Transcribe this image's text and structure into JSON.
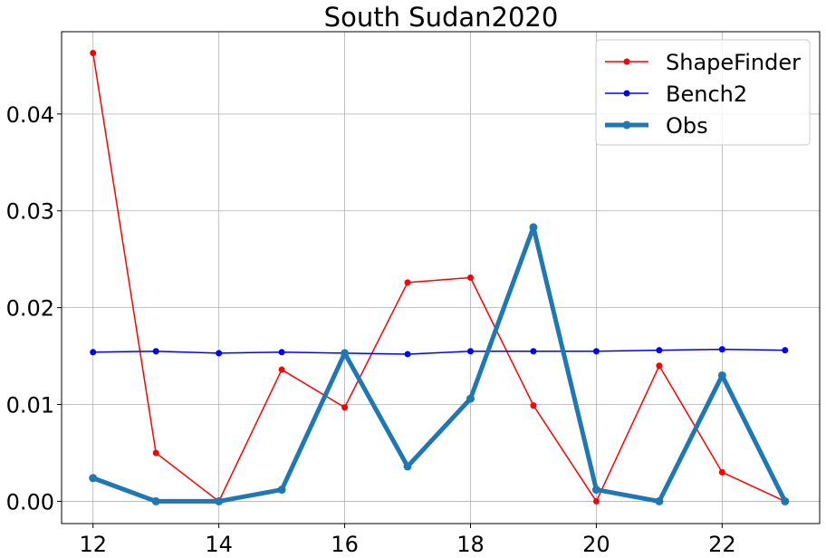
{
  "chart_data": {
    "type": "line",
    "title": "South Sudan2020",
    "xlabel": "",
    "ylabel": "",
    "x": [
      12,
      13,
      14,
      15,
      16,
      17,
      18,
      19,
      20,
      21,
      22,
      23
    ],
    "xlim": [
      11.5,
      23.55
    ],
    "ylim": [
      -0.0023,
      0.0485
    ],
    "xticks": [
      12,
      14,
      16,
      18,
      20,
      22
    ],
    "xtick_labels": [
      "12",
      "14",
      "16",
      "18",
      "20",
      "22"
    ],
    "yticks": [
      0.0,
      0.01,
      0.02,
      0.03,
      0.04
    ],
    "ytick_labels": [
      "0.00",
      "0.01",
      "0.02",
      "0.03",
      "0.04"
    ],
    "grid": true,
    "legend_position": "top-right",
    "series": [
      {
        "name": "ShapeFinder",
        "color": "#ff0000",
        "line_style": "thin",
        "values": [
          0.0463,
          0.005,
          0.0,
          0.0136,
          0.0097,
          0.0226,
          0.0231,
          0.0099,
          0.0,
          0.014,
          0.003,
          0.0
        ]
      },
      {
        "name": "Bench2",
        "color": "#0000ff",
        "line_style": "thin",
        "values": [
          0.0154,
          0.0155,
          0.0153,
          0.0154,
          0.0153,
          0.0152,
          0.0155,
          0.0155,
          0.0155,
          0.0156,
          0.0157,
          0.0156
        ]
      },
      {
        "name": "Obs",
        "color": "#1f77b4",
        "line_style": "thick",
        "values": [
          0.0024,
          0.0,
          0.0,
          0.0012,
          0.0153,
          0.0036,
          0.0106,
          0.0283,
          0.0012,
          0.0,
          0.013,
          0.0
        ]
      }
    ]
  }
}
